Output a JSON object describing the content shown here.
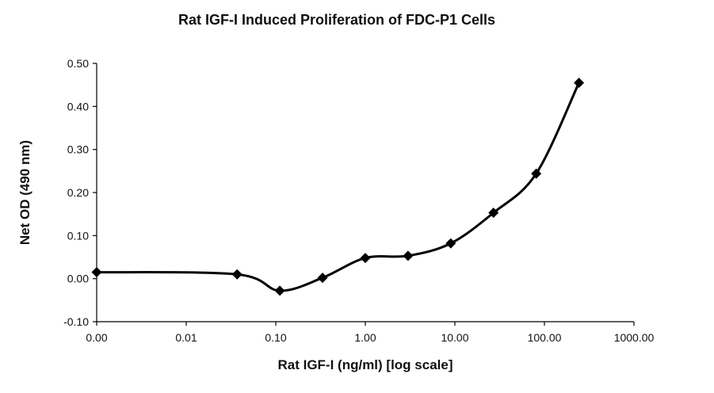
{
  "chart_data": {
    "type": "line",
    "title": "Rat IGF-I  Induced Proliferation of FDC-P1 Cells",
    "xlabel": "Rat IGF-I (ng/ml) [log scale]",
    "ylabel": "Net OD (490 nm)",
    "x_scale": "log",
    "xlim": [
      0.001,
      1000
    ],
    "ylim": [
      -0.1,
      0.5
    ],
    "x_ticks": [
      0.001,
      0.01,
      0.1,
      1,
      10,
      100,
      1000
    ],
    "x_tick_labels": [
      "0.00",
      "0.01",
      "0.10",
      "1.00",
      "10.00",
      "100.00",
      "1000.00"
    ],
    "y_ticks": [
      -0.1,
      0.0,
      0.1,
      0.2,
      0.3,
      0.4,
      0.5
    ],
    "y_tick_labels": [
      "-0.10",
      "0.00",
      "0.10",
      "0.20",
      "0.30",
      "0.40",
      "0.50"
    ],
    "grid": false,
    "legend": "none",
    "marker": "diamond",
    "line_style": "smooth",
    "series": [
      {
        "x": [
          0.001,
          0.037,
          0.111,
          0.333,
          1.0,
          3.0,
          9.0,
          27.0,
          81.0,
          243.0
        ],
        "y": [
          0.015,
          0.01,
          -0.028,
          0.002,
          0.048,
          0.053,
          0.082,
          0.153,
          0.244,
          0.455
        ],
        "color": "#000000"
      }
    ]
  }
}
